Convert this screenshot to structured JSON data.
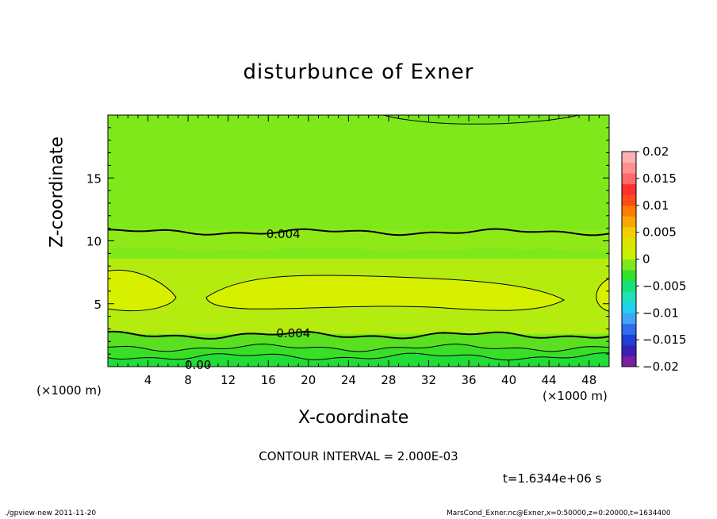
{
  "chart_data": {
    "type": "heatmap",
    "title": "disturbunce of Exner",
    "xlabel": "X-coordinate",
    "ylabel": "Z-coordinate",
    "x_unit": "(×1000 m)",
    "xlim": [
      0,
      50
    ],
    "ylim": [
      0,
      20
    ],
    "x_ticks": [
      4,
      8,
      12,
      16,
      20,
      24,
      28,
      32,
      36,
      40,
      44,
      48
    ],
    "y_ticks": [
      5,
      10,
      15
    ],
    "contour_labels": [
      {
        "text": "0.004",
        "x": 17.5,
        "z": 10.6
      },
      {
        "text": "0.004",
        "x": 18.5,
        "z": 2.7
      },
      {
        "text": "0.00",
        "x": 9.0,
        "z": 0.2
      }
    ],
    "colorbar": {
      "min": -0.02,
      "max": 0.02,
      "tick_labels": [
        "0.02",
        "0.015",
        "0.01",
        "0.005",
        "0",
        "−0.005",
        "−0.01",
        "−0.015",
        "−0.02"
      ],
      "colors": [
        "#7a1fa2",
        "#3a1fb5",
        "#1f3fd6",
        "#2e6cf0",
        "#3fa6f5",
        "#1fd0f0",
        "#20e0b8",
        "#16e07a",
        "#33e02a",
        "#7fe81a",
        "#c8f000",
        "#dde400",
        "#f0d000",
        "#f7a800",
        "#ff7a00",
        "#ff4a1a",
        "#ff3030",
        "#ff6a6a",
        "#ff9090",
        "#ffb0b0"
      ]
    },
    "contour_interval": "CONTOUR INTERVAL = 2.000E-03",
    "time": "t=1.6344e+06 s"
  },
  "footer": {
    "left": "./gpview-new   2011-11-20",
    "right": "MarsCond_Exner.nc@Exner,x=0:50000,z=0:20000,t=1634400"
  }
}
